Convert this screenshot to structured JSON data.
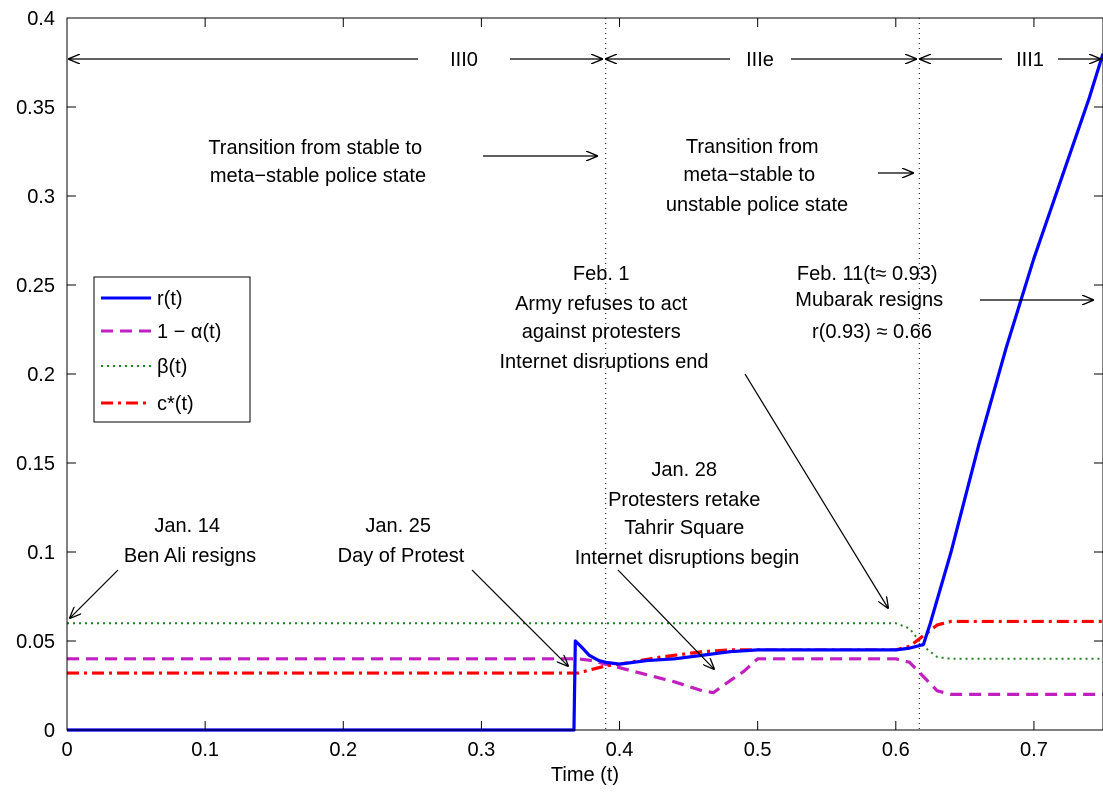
{
  "chart_data": {
    "type": "line",
    "xlabel": "Time (t)",
    "ylabel": "",
    "xlim": [
      0,
      0.75
    ],
    "ylim": [
      0,
      0.4
    ],
    "xticks": [
      0,
      0.1,
      0.2,
      0.3,
      0.4,
      0.5,
      0.6,
      0.7
    ],
    "xtick_labels": [
      "0",
      "0.1",
      "0.2",
      "0.3",
      "0.4",
      "0.5",
      "0.6",
      "0.7"
    ],
    "yticks": [
      0,
      0.05,
      0.1,
      0.15,
      0.2,
      0.25,
      0.3,
      0.35,
      0.4
    ],
    "ytick_labels": [
      "0",
      "0.05",
      "0.1",
      "0.15",
      "0.2",
      "0.25",
      "0.3",
      "0.35",
      "0.4"
    ],
    "grid": false,
    "legend_position": "left",
    "series": [
      {
        "name": "r(t)",
        "color": "#0000ff",
        "dash": "solid",
        "points": [
          [
            0,
            0
          ],
          [
            0.366,
            0
          ],
          [
            0.367,
            0
          ],
          [
            0.368,
            0.05
          ],
          [
            0.372,
            0.047
          ],
          [
            0.378,
            0.042
          ],
          [
            0.385,
            0.039
          ],
          [
            0.39,
            0.038
          ],
          [
            0.4,
            0.037
          ],
          [
            0.42,
            0.039
          ],
          [
            0.44,
            0.04
          ],
          [
            0.46,
            0.042
          ],
          [
            0.48,
            0.044
          ],
          [
            0.5,
            0.045
          ],
          [
            0.55,
            0.045
          ],
          [
            0.6,
            0.045
          ],
          [
            0.61,
            0.046
          ],
          [
            0.62,
            0.048
          ],
          [
            0.625,
            0.06
          ],
          [
            0.64,
            0.1
          ],
          [
            0.66,
            0.16
          ],
          [
            0.68,
            0.215
          ],
          [
            0.7,
            0.265
          ],
          [
            0.72,
            0.31
          ],
          [
            0.74,
            0.355
          ],
          [
            0.75,
            0.38
          ]
        ]
      },
      {
        "name": "1 − α(t)",
        "color": "#c020c0",
        "dash": "dashed",
        "points": [
          [
            0,
            0.04
          ],
          [
            0.37,
            0.04
          ],
          [
            0.38,
            0.039
          ],
          [
            0.39,
            0.037
          ],
          [
            0.4,
            0.035
          ],
          [
            0.42,
            0.031
          ],
          [
            0.44,
            0.027
          ],
          [
            0.46,
            0.022
          ],
          [
            0.468,
            0.021
          ],
          [
            0.475,
            0.025
          ],
          [
            0.49,
            0.033
          ],
          [
            0.5,
            0.04
          ],
          [
            0.6,
            0.04
          ],
          [
            0.61,
            0.038
          ],
          [
            0.62,
            0.03
          ],
          [
            0.63,
            0.022
          ],
          [
            0.64,
            0.02
          ],
          [
            0.75,
            0.02
          ]
        ]
      },
      {
        "name": "β(t)",
        "color": "#208020",
        "dash": "dotted",
        "points": [
          [
            0,
            0.06
          ],
          [
            0.6,
            0.06
          ],
          [
            0.61,
            0.057
          ],
          [
            0.62,
            0.047
          ],
          [
            0.63,
            0.041
          ],
          [
            0.64,
            0.04
          ],
          [
            0.75,
            0.04
          ]
        ]
      },
      {
        "name": "c*(t)",
        "color": "#ff0000",
        "dash": "dashdot",
        "points": [
          [
            0,
            0.032
          ],
          [
            0.37,
            0.032
          ],
          [
            0.38,
            0.034
          ],
          [
            0.39,
            0.036
          ],
          [
            0.4,
            0.037
          ],
          [
            0.43,
            0.041
          ],
          [
            0.46,
            0.044
          ],
          [
            0.48,
            0.045
          ],
          [
            0.6,
            0.045
          ],
          [
            0.61,
            0.047
          ],
          [
            0.62,
            0.053
          ],
          [
            0.63,
            0.059
          ],
          [
            0.64,
            0.061
          ],
          [
            0.75,
            0.061
          ]
        ]
      }
    ],
    "regions": [
      {
        "label": "III0",
        "from": 0,
        "to": 0.39
      },
      {
        "label": "IIIe",
        "from": 0.39,
        "to": 0.617
      },
      {
        "label": "III1",
        "from": 0.617,
        "to": 0.75
      }
    ],
    "vlines": [
      0.39,
      0.617
    ],
    "annotations": [
      {
        "lines": [
          "Jan. 14",
          "Ben Ali resigns"
        ]
      },
      {
        "lines": [
          "Jan. 25",
          "Day of Protest"
        ]
      },
      {
        "lines": [
          "Jan. 28",
          "Protesters retake",
          "Tahrir Square",
          "Internet disruptions begin"
        ]
      },
      {
        "lines": [
          "Feb. 1",
          "Army refuses to act",
          "against protesters",
          "Internet disruptions end"
        ]
      },
      {
        "lines": [
          "Feb. 11(t≈ 0.93)",
          "Mubarak resigns",
          "r(0.93) ≈ 0.66"
        ]
      },
      {
        "lines": [
          "Transition from stable to",
          "meta−stable police state"
        ]
      },
      {
        "lines": [
          "Transition from",
          "meta−stable to",
          "unstable police state"
        ]
      }
    ]
  }
}
